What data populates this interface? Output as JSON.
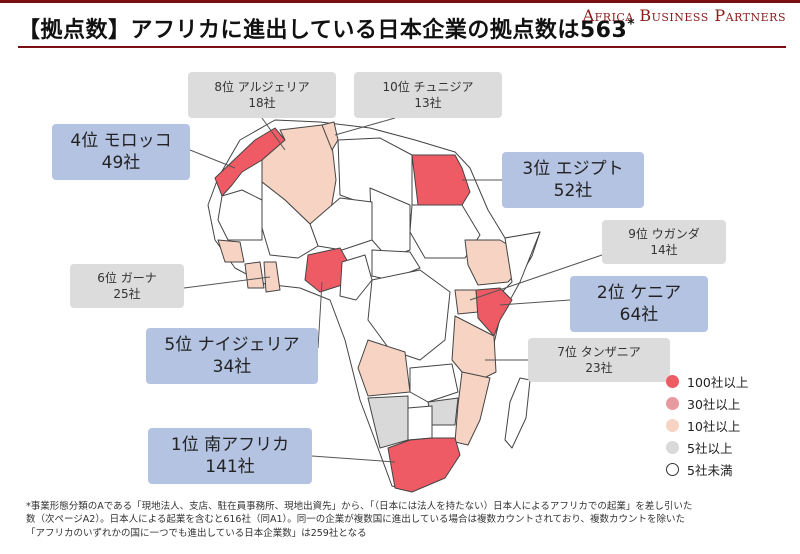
{
  "header": {
    "title": "【拠点数】アフリカに進出している日本企業の拠点数は563",
    "title_mark": "*",
    "brand": "Africa Business Partners"
  },
  "colors": {
    "brand": "#7a0f12",
    "callout_rank": "#b4c3e2",
    "callout_other": "#dcdcdc",
    "tier_100": "#ef5b64",
    "tier_30": "#e99aa0",
    "tier_10": "#f6d3c2",
    "tier_5": "#d9d9d9",
    "tier_under5": "#ffffff"
  },
  "callouts": {
    "morocco": {
      "rank": "4位 モロッコ",
      "count": "49社"
    },
    "algeria": {
      "rank": "8位 アルジェリア",
      "count": "18社"
    },
    "tunisia": {
      "rank": "10位 チュニジア",
      "count": "13社"
    },
    "egypt": {
      "rank": "3位 エジプト",
      "count": "52社"
    },
    "uganda": {
      "rank": "9位 ウガンダ",
      "count": "14社"
    },
    "ghana": {
      "rank": "6位 ガーナ",
      "count": "25社"
    },
    "kenya": {
      "rank": "2位 ケニア",
      "count": "64社"
    },
    "nigeria": {
      "rank": "5位 ナイジェリア",
      "count": "34社"
    },
    "tanzania": {
      "rank": "7位 タンザニア",
      "count": "23社"
    },
    "south_africa": {
      "rank": "1位 南アフリカ",
      "count": "141社"
    }
  },
  "legend": [
    {
      "label": "100社以上",
      "color": "#ef5b64"
    },
    {
      "label": "30社以上",
      "color": "#e99aa0"
    },
    {
      "label": "10社以上",
      "color": "#f6d3c2"
    },
    {
      "label": "5社以上",
      "color": "#d9d9d9"
    },
    {
      "label": "5社未満",
      "color": "#ffffff"
    }
  ],
  "footnote": {
    "line1": "*事業形態分類のAである「現地法人、支店、駐在員事務所、現地出資先」から、「（日本には法人を持たない）日本人によるアフリカでの起業」を差し引いた",
    "line2": "数（次ページA2）。日本人による起業を含むと616社（同A1）。同一の企業が複数国に進出している場合は複数カウントされており、複数カウントを除いた",
    "line3": "「アフリカのいずれかの国に一つでも進出している日本企業数」は259社となる"
  }
}
